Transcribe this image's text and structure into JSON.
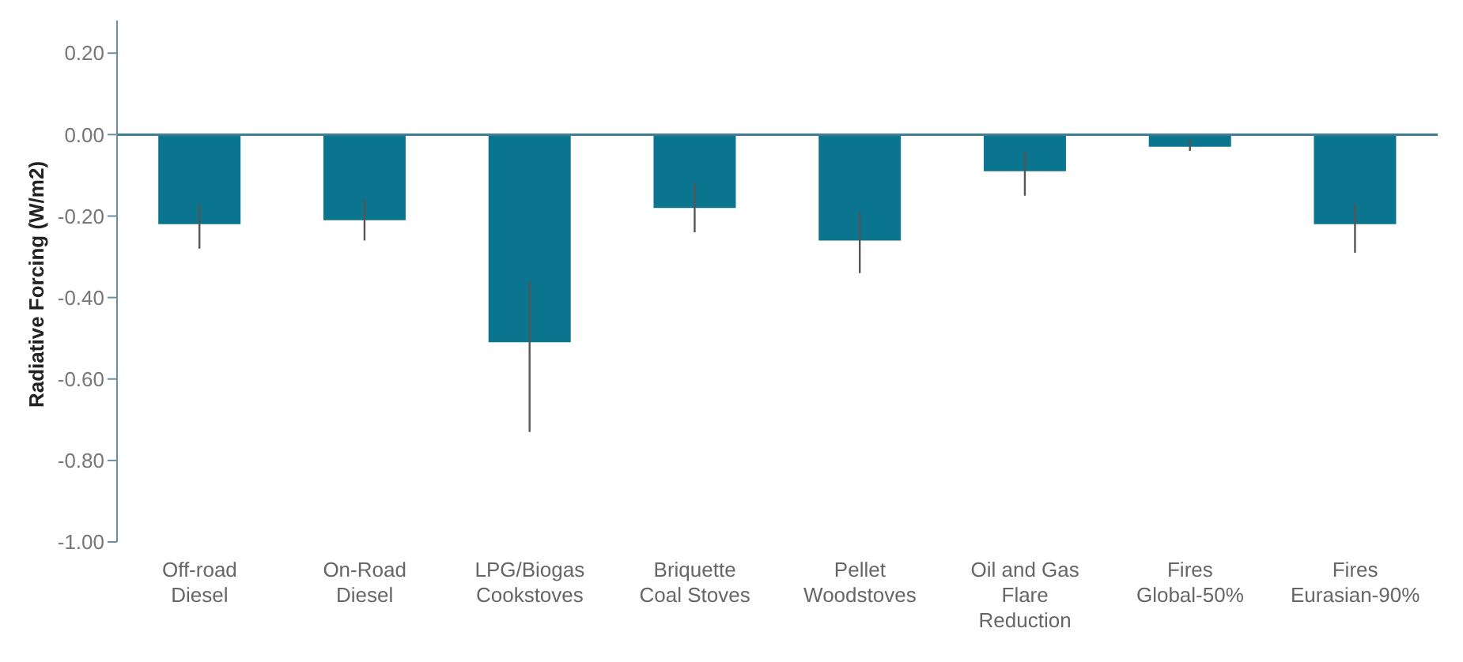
{
  "chart_data": {
    "type": "bar",
    "ylabel": "Radiative Forcing (W/m2)",
    "categories": [
      "Off-road Diesel",
      "On-Road Diesel",
      "LPG/Biogas Cookstoves",
      "Briquette Coal Stoves",
      "Pellet Woodstoves",
      "Oil and Gas Flare Reduction",
      "Fires Global-50%",
      "Fires Eurasian-90%"
    ],
    "values": [
      -0.22,
      -0.21,
      -0.51,
      -0.18,
      -0.26,
      -0.09,
      -0.03,
      -0.22
    ],
    "errors": [
      [
        -0.28,
        -0.17
      ],
      [
        -0.26,
        -0.16
      ],
      [
        -0.73,
        -0.36
      ],
      [
        -0.24,
        -0.12
      ],
      [
        -0.34,
        -0.19
      ],
      [
        -0.15,
        -0.04
      ],
      [
        -0.04,
        -0.01
      ],
      [
        -0.29,
        -0.17
      ]
    ],
    "color": "#0b7590",
    "ylim": [
      -1.0,
      0.28
    ],
    "yticks": [
      {
        "value": 0.2,
        "label": "0.20"
      },
      {
        "value": 0,
        "label": "0.00"
      },
      {
        "value": -0.2,
        "label": "-0.20"
      },
      {
        "value": -0.4,
        "label": "-0.40"
      },
      {
        "value": -0.6,
        "label": "-0.60"
      },
      {
        "value": -0.8,
        "label": "-0.80"
      },
      {
        "value": -1.0,
        "label": "-1.00"
      }
    ],
    "ref_lines": [
      {
        "axis": "y",
        "value": 0,
        "color": "#3e7d96"
      }
    ],
    "grid": false,
    "legend": false
  }
}
